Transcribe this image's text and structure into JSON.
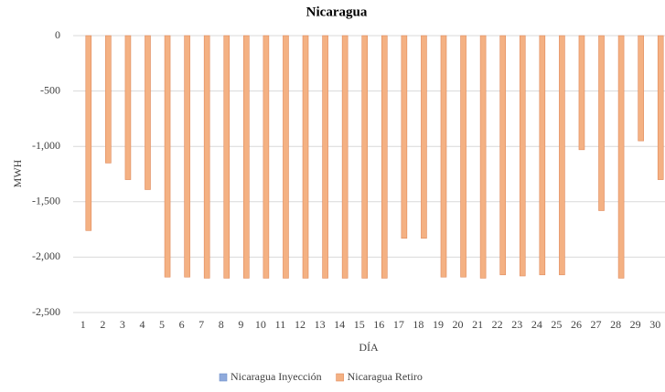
{
  "chart_data": {
    "type": "bar",
    "title": "Nicaragua",
    "x_label": "DÍA",
    "y_label": "MWH",
    "categories": [
      "1",
      "2",
      "3",
      "4",
      "5",
      "6",
      "7",
      "8",
      "9",
      "10",
      "11",
      "12",
      "13",
      "14",
      "15",
      "16",
      "17",
      "18",
      "19",
      "20",
      "21",
      "22",
      "23",
      "24",
      "25",
      "26",
      "27",
      "28",
      "29",
      "30"
    ],
    "series": [
      {
        "name": "Nicaragua Inyección",
        "color": "#8faadc",
        "values": [
          0,
          0,
          0,
          0,
          0,
          0,
          0,
          0,
          0,
          0,
          0,
          0,
          0,
          0,
          0,
          0,
          0,
          0,
          0,
          0,
          0,
          0,
          0,
          0,
          0,
          0,
          0,
          0,
          0,
          0
        ]
      },
      {
        "name": "Nicaragua Retiro",
        "color": "#f4b183",
        "values": [
          -1760,
          -1150,
          -1300,
          -1390,
          -2180,
          -2180,
          -2190,
          -2190,
          -2190,
          -2190,
          -2190,
          -2190,
          -2190,
          -2190,
          -2190,
          -2190,
          -1830,
          -1830,
          -2180,
          -2180,
          -2190,
          -2160,
          -2170,
          -2160,
          -2160,
          -1030,
          -1580,
          -2190,
          -950,
          -1300
        ]
      }
    ],
    "ylim": [
      -2500,
      0
    ],
    "yticks": [
      {
        "value": -2500,
        "label": "-2,500"
      },
      {
        "value": -2000,
        "label": "-2,000"
      },
      {
        "value": -1500,
        "label": "-1,500"
      },
      {
        "value": -1000,
        "label": "-1,000"
      },
      -500,
      0
    ],
    "grid": true,
    "legend": "bottom"
  }
}
